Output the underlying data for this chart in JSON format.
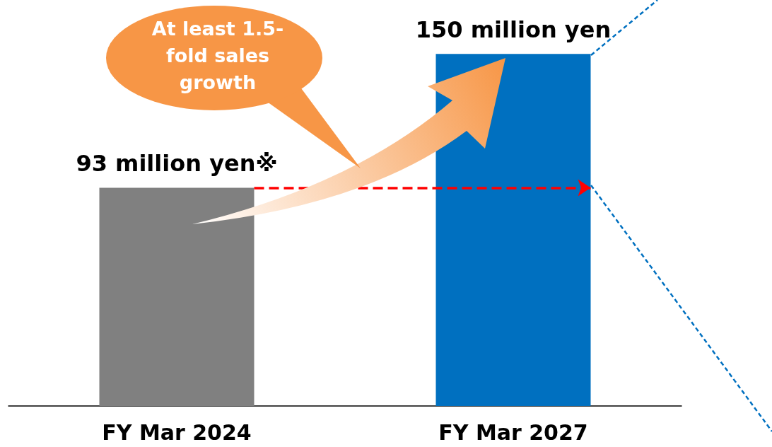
{
  "chart_data": {
    "type": "bar",
    "categories": [
      "FY Mar 2024",
      "FY Mar 2027"
    ],
    "values": [
      93,
      150
    ],
    "colors": [
      "#808080",
      "#0070c0"
    ],
    "value_labels": [
      "93 million yen※",
      "150 million yen"
    ],
    "ylim": [
      0,
      173
    ],
    "ref_lines": [
      {
        "axis": "y",
        "value": 93,
        "color": "#ff0000",
        "line_style": "dashed"
      }
    ],
    "annotations": [
      "At least 1.5-fold sales growth"
    ],
    "grid": false
  }
}
